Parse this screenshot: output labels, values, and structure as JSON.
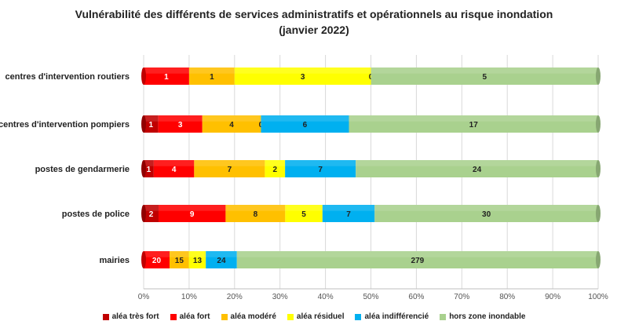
{
  "chart_data": {
    "type": "bar",
    "orientation": "horizontal",
    "stacked": "percent",
    "title_line1": "Vulnérabilité des différents de services administratifs et opérationnels au risque inondation",
    "title_line2": "(janvier 2022)",
    "categories": [
      "centres d'intervention routiers",
      "centres d'intervention pompiers",
      "postes de gendarmerie",
      "postes de police",
      "mairies"
    ],
    "series": [
      {
        "name": "aléa très fort",
        "color": "#C00000",
        "values": [
          0,
          1,
          1,
          2,
          0
        ]
      },
      {
        "name": "aléa fort",
        "color": "#FF0000",
        "values": [
          1,
          3,
          4,
          9,
          20
        ]
      },
      {
        "name": "aléa modéré",
        "color": "#FFC000",
        "values": [
          1,
          4,
          7,
          8,
          15
        ]
      },
      {
        "name": "aléa résiduel",
        "color": "#FFFF00",
        "values": [
          3,
          0,
          2,
          5,
          13
        ]
      },
      {
        "name": "aléa indifférencié",
        "color": "#00B0F0",
        "values": [
          0,
          6,
          7,
          7,
          24
        ]
      },
      {
        "name": "hors zone inondable",
        "color": "#A9D18E",
        "values": [
          5,
          17,
          24,
          30,
          279
        ]
      }
    ],
    "x_ticks": [
      "0%",
      "10%",
      "20%",
      "30%",
      "40%",
      "50%",
      "60%",
      "70%",
      "80%",
      "90%",
      "100%"
    ],
    "xlim": [
      0,
      100
    ],
    "grid": true,
    "legend_position": "bottom"
  }
}
